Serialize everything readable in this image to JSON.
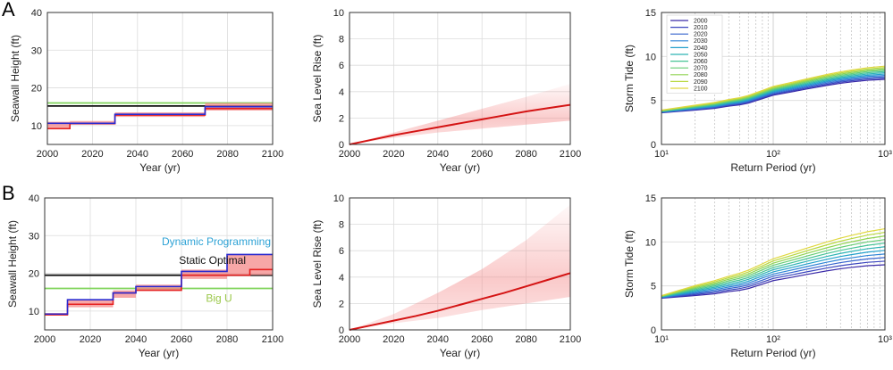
{
  "figure": {
    "panel_labels": [
      "A",
      "B"
    ]
  },
  "colors": {
    "seawall_blue": "#2a2ad0",
    "seawall_red": "#e52121",
    "band_red": "#f48a8a",
    "static_black": "#111111",
    "bigu_green": "#7fd45a",
    "dynamic_label": "#2fa3d6",
    "bigu_label": "#9bc84a",
    "sea_level_line": "#d41414",
    "storm_tide_colormap": [
      "#3a2aa8",
      "#3c52c8",
      "#2f80d8",
      "#20a8c8",
      "#3cc0a0",
      "#6ccf70",
      "#a8d840",
      "#e0d840"
    ]
  },
  "chart_data": [
    {
      "id": "A1",
      "type": "line",
      "title": "",
      "xlabel": "Year (yr)",
      "ylabel": "Seawall Height (ft)",
      "xlim": [
        2000,
        2100
      ],
      "ylim": [
        5,
        40
      ],
      "xticks": [
        2000,
        2020,
        2040,
        2060,
        2080,
        2100
      ],
      "yticks": [
        10,
        20,
        30,
        40
      ],
      "grid": true,
      "series": [
        {
          "color_key": "bigu_green",
          "style": "hline",
          "x": [
            2000,
            2100
          ],
          "y": [
            16,
            16
          ]
        },
        {
          "color_key": "static_black",
          "style": "hline",
          "x": [
            2000,
            2100
          ],
          "y": [
            15.2,
            15.2
          ]
        },
        {
          "color_key": "band_red",
          "style": "band",
          "x": [
            2000,
            2010,
            2010,
            2030,
            2030,
            2070,
            2070,
            2100
          ],
          "lower": [
            9,
            9,
            10.3,
            10.3,
            12.3,
            12.3,
            14,
            14
          ],
          "upper": [
            11,
            11,
            11.2,
            11.2,
            13.5,
            13.5,
            16,
            16
          ]
        },
        {
          "color_key": "seawall_red",
          "style": "step",
          "x": [
            2000,
            2010,
            2010,
            2030,
            2030,
            2070,
            2070,
            2100
          ],
          "y": [
            9.2,
            9.2,
            10.5,
            10.5,
            12.8,
            12.8,
            14.5,
            14.5
          ]
        },
        {
          "color_key": "seawall_blue",
          "style": "step",
          "x": [
            2000,
            2010,
            2010,
            2030,
            2030,
            2070,
            2070,
            2100
          ],
          "y": [
            10.6,
            10.6,
            10.6,
            10.6,
            13.0,
            13.0,
            15.0,
            15.0
          ]
        }
      ]
    },
    {
      "id": "A2",
      "type": "area",
      "title": "",
      "xlabel": "Year (yr)",
      "ylabel": "Sea Level Rise (ft)",
      "xlim": [
        2000,
        2100
      ],
      "ylim": [
        0,
        10
      ],
      "xticks": [
        2000,
        2020,
        2040,
        2060,
        2080,
        2100
      ],
      "yticks": [
        0,
        2,
        4,
        6,
        8,
        10
      ],
      "grid": true,
      "median": {
        "x": [
          2000,
          2010,
          2020,
          2030,
          2040,
          2050,
          2060,
          2070,
          2080,
          2090,
          2100
        ],
        "y": [
          0,
          0.35,
          0.7,
          1.0,
          1.3,
          1.6,
          1.9,
          2.2,
          2.5,
          2.75,
          3.0
        ]
      },
      "band": {
        "x": [
          2000,
          2020,
          2040,
          2060,
          2080,
          2100
        ],
        "lower": [
          0,
          0.5,
          0.9,
          1.2,
          1.5,
          1.8
        ],
        "upper": [
          0,
          0.9,
          1.8,
          2.7,
          3.6,
          4.6
        ]
      }
    },
    {
      "id": "A3",
      "type": "line",
      "title": "",
      "xlabel": "Return Period (yr)",
      "ylabel": "Storm Tide (ft)",
      "xscale": "log",
      "xlim": [
        10,
        1000
      ],
      "ylim": [
        0,
        15
      ],
      "xticks": [
        10,
        100,
        1000
      ],
      "xtick_labels": [
        "10¹",
        "10²",
        "10³"
      ],
      "yticks": [
        0,
        5,
        10,
        15
      ],
      "grid": true,
      "legend": {
        "position": "top-left",
        "entries": [
          "2000",
          "2010",
          "2020",
          "2030",
          "2040",
          "2050",
          "2060",
          "2070",
          "2080",
          "2090",
          "2100"
        ]
      },
      "x": [
        10,
        20,
        30,
        40,
        50,
        60,
        80,
        100,
        150,
        200,
        300,
        400,
        500,
        700,
        1000
      ],
      "base_curve": [
        3.6,
        3.9,
        4.1,
        4.35,
        4.5,
        4.7,
        5.2,
        5.6,
        6.0,
        6.3,
        6.7,
        6.95,
        7.1,
        7.3,
        7.4
      ],
      "series_offsets_at_1000": [
        0,
        0.12,
        0.24,
        0.36,
        0.48,
        0.6,
        0.72,
        0.84,
        0.96,
        1.08,
        1.2
      ]
    },
    {
      "id": "B1",
      "type": "line",
      "title": "",
      "xlabel": "Year (yr)",
      "ylabel": "Seawall Height (ft)",
      "xlim": [
        2000,
        2100
      ],
      "ylim": [
        5,
        40
      ],
      "xticks": [
        2000,
        2020,
        2040,
        2060,
        2080,
        2100
      ],
      "yticks": [
        10,
        20,
        30,
        40
      ],
      "grid": true,
      "annotations": [
        {
          "text": "Dynamic Programming",
          "color_key": "dynamic_label"
        },
        {
          "text": "Static Optimal",
          "color_key": "static_black"
        },
        {
          "text": "Big U",
          "color_key": "bigu_label"
        }
      ],
      "series": [
        {
          "color_key": "bigu_green",
          "style": "hline",
          "x": [
            2000,
            2100
          ],
          "y": [
            16,
            16
          ]
        },
        {
          "color_key": "static_black",
          "style": "hline",
          "x": [
            2000,
            2100
          ],
          "y": [
            19.5,
            19.5
          ]
        },
        {
          "color_key": "band_red",
          "style": "band",
          "x": [
            2000,
            2010,
            2010,
            2030,
            2030,
            2040,
            2040,
            2060,
            2060,
            2080,
            2080,
            2100
          ],
          "lower": [
            8.8,
            8.8,
            11,
            11,
            13.5,
            13.5,
            15.5,
            15.5,
            18.5,
            18.5,
            19.5,
            19.5
          ],
          "upper": [
            9.5,
            9.5,
            13,
            13,
            15.5,
            15.5,
            17,
            17,
            21,
            21,
            25,
            25
          ]
        },
        {
          "color_key": "seawall_red",
          "style": "step",
          "x": [
            2000,
            2010,
            2010,
            2030,
            2030,
            2040,
            2040,
            2060,
            2060,
            2090,
            2090,
            2100
          ],
          "y": [
            9,
            9,
            11.8,
            11.8,
            14.8,
            14.8,
            15.5,
            15.5,
            19.5,
            19.5,
            21,
            21
          ]
        },
        {
          "color_key": "seawall_blue",
          "style": "step",
          "x": [
            2000,
            2010,
            2010,
            2030,
            2030,
            2040,
            2040,
            2060,
            2060,
            2080,
            2080,
            2100
          ],
          "y": [
            9.2,
            9.2,
            13,
            13,
            14.8,
            14.8,
            16.5,
            16.5,
            20.5,
            20.5,
            25,
            25
          ]
        }
      ]
    },
    {
      "id": "B2",
      "type": "area",
      "title": "",
      "xlabel": "Year (yr)",
      "ylabel": "Sea Level Rise (ft)",
      "xlim": [
        2000,
        2100
      ],
      "ylim": [
        0,
        10
      ],
      "xticks": [
        2000,
        2020,
        2040,
        2060,
        2080,
        2100
      ],
      "yticks": [
        0,
        2,
        4,
        6,
        8,
        10
      ],
      "grid": true,
      "median": {
        "x": [
          2000,
          2010,
          2020,
          2030,
          2040,
          2050,
          2060,
          2070,
          2080,
          2090,
          2100
        ],
        "y": [
          0,
          0.35,
          0.7,
          1.05,
          1.45,
          1.9,
          2.35,
          2.8,
          3.3,
          3.8,
          4.3
        ]
      },
      "band": {
        "x": [
          2000,
          2020,
          2040,
          2060,
          2080,
          2100
        ],
        "lower": [
          0,
          0.5,
          0.9,
          1.5,
          2.0,
          2.5
        ],
        "upper": [
          0,
          1.2,
          2.8,
          4.6,
          6.8,
          9.5
        ]
      }
    },
    {
      "id": "B3",
      "type": "line",
      "title": "",
      "xlabel": "Return Period (yr)",
      "ylabel": "Storm Tide (ft)",
      "xscale": "log",
      "xlim": [
        10,
        1000
      ],
      "ylim": [
        0,
        15
      ],
      "xticks": [
        10,
        100,
        1000
      ],
      "xtick_labels": [
        "10¹",
        "10²",
        "10³"
      ],
      "yticks": [
        0,
        5,
        10,
        15
      ],
      "grid": true,
      "x": [
        10,
        20,
        30,
        40,
        50,
        60,
        80,
        100,
        150,
        200,
        300,
        400,
        500,
        700,
        1000
      ],
      "base_curve": [
        3.6,
        3.9,
        4.1,
        4.35,
        4.5,
        4.7,
        5.2,
        5.6,
        6.0,
        6.3,
        6.7,
        6.95,
        7.1,
        7.3,
        7.4
      ],
      "series_offsets_at_1000": [
        0,
        0.38,
        0.76,
        1.14,
        1.52,
        1.9,
        2.28,
        2.66,
        3.04,
        3.42,
        3.8
      ]
    }
  ]
}
